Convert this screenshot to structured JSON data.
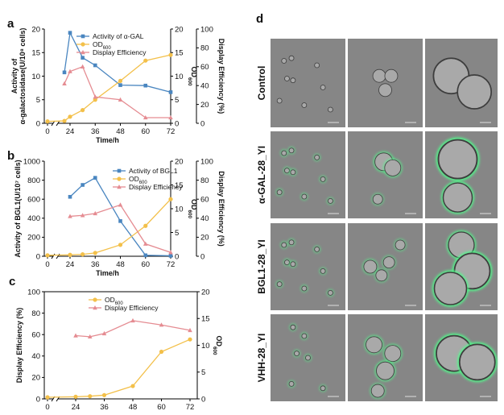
{
  "colors": {
    "alpha_gal": "#4a86c0",
    "bgl1": "#4a86c0",
    "od": "#f3c04a",
    "display": "#e58c92",
    "micro_bg": "#868686",
    "cell_fill": "#a9a9a9",
    "cell_edge": "#3d3d3d",
    "fluor": "#4dff8a"
  },
  "chart_data": [
    {
      "panel": "a",
      "type": "line",
      "x_ticks": [
        "0",
        "24",
        "36",
        "48",
        "60",
        "72"
      ],
      "xlabel": "Time/h",
      "ylabel_left": "Activity of α-galactosidase(U/10⁸ cells)",
      "ylabel_right_inner": "OD₆₀₀",
      "ylabel_right_outer": "Display Efficiency (%)",
      "ylim_left": [
        0,
        20
      ],
      "ylim_right_inner": [
        0,
        20
      ],
      "ylim_right_outer": [
        0,
        100
      ],
      "yticks_left": [
        "0",
        "5",
        "10",
        "15",
        "20"
      ],
      "yticks_right_inner": [
        "0",
        "5",
        "10",
        "15",
        "20"
      ],
      "yticks_right_outer": [
        "0",
        "20",
        "40",
        "60",
        "80",
        "100"
      ],
      "legend_position": "top-center",
      "series": [
        {
          "name": "Activity of α-GAL",
          "axis": "left",
          "color_key": "alpha_gal",
          "marker": "square",
          "x": [
            18,
            24,
            30,
            36,
            48,
            60,
            72
          ],
          "y": [
            10.8,
            19.2,
            13.9,
            12.3,
            8.1,
            8.0,
            6.6
          ]
        },
        {
          "name": "OD600",
          "legend_main": "OD",
          "legend_sub": "600",
          "axis": "right_inner",
          "color_key": "od",
          "marker": "circle",
          "x": [
            0,
            18,
            24,
            30,
            36,
            48,
            60,
            72
          ],
          "y": [
            0.4,
            0.5,
            1.4,
            2.8,
            5.0,
            9.0,
            13.3,
            14.5
          ]
        },
        {
          "name": "Display Efficiency",
          "axis": "right_outer",
          "color_key": "display",
          "marker": "triangle",
          "x": [
            18,
            24,
            30,
            36,
            48,
            60,
            72
          ],
          "y": [
            42,
            55,
            60,
            28,
            25,
            6,
            6
          ]
        }
      ]
    },
    {
      "panel": "b",
      "type": "line",
      "x_ticks": [
        "0",
        "24",
        "36",
        "48",
        "60",
        "72"
      ],
      "xlabel": "Time/h",
      "ylabel_left": "Activity of BGL1(U/10⁷ cells)",
      "ylabel_right_inner": "OD₆₀₀",
      "ylabel_right_outer": "Display Efficiency (%)",
      "ylim_left": [
        0,
        1000
      ],
      "ylim_right_inner": [
        0,
        20
      ],
      "ylim_right_outer": [
        0,
        100
      ],
      "yticks_left": [
        "0",
        "200",
        "400",
        "600",
        "800",
        "1000"
      ],
      "yticks_right_inner": [
        "0",
        "5",
        "10",
        "15",
        "20"
      ],
      "yticks_right_outer": [
        "0",
        "20",
        "40",
        "60",
        "80",
        "100"
      ],
      "legend_position": "top-right",
      "series": [
        {
          "name": "Activity of BGL1",
          "axis": "left",
          "color_key": "bgl1",
          "marker": "square",
          "x": [
            24,
            30,
            36,
            48,
            60,
            72
          ],
          "y": [
            625,
            750,
            825,
            370,
            10,
            5
          ]
        },
        {
          "name": "OD600",
          "legend_main": "OD",
          "legend_sub": "600",
          "axis": "right_inner",
          "color_key": "od",
          "marker": "circle",
          "x": [
            0,
            24,
            30,
            36,
            48,
            60,
            72
          ],
          "y": [
            0.2,
            0.3,
            0.4,
            0.7,
            2.4,
            6.4,
            12.0
          ]
        },
        {
          "name": "Display Efficiency",
          "axis": "right_outer",
          "color_key": "display",
          "marker": "triangle",
          "x": [
            24,
            30,
            36,
            48,
            60,
            72
          ],
          "y": [
            42,
            43,
            45,
            54,
            13,
            4
          ]
        }
      ]
    },
    {
      "panel": "c",
      "type": "line",
      "x_ticks": [
        "0",
        "24",
        "36",
        "48",
        "60",
        "72"
      ],
      "xlabel": "",
      "ylabel_left": "Display Efficiency (%)",
      "ylabel_right": "OD₆₀₀",
      "ylim_left": [
        0,
        100
      ],
      "ylim_right": [
        0,
        20
      ],
      "yticks_left": [
        "0",
        "20",
        "40",
        "60",
        "80",
        "100"
      ],
      "yticks_right": [
        "0",
        "5",
        "10",
        "15",
        "20"
      ],
      "legend_position": "top-center",
      "series": [
        {
          "name": "OD600",
          "legend_main": "OD",
          "legend_sub": "600",
          "axis": "right",
          "color_key": "od",
          "marker": "circle",
          "x": [
            0,
            24,
            30,
            36,
            48,
            60,
            72
          ],
          "y": [
            0.3,
            0.4,
            0.5,
            0.7,
            2.4,
            8.8,
            11.1
          ]
        },
        {
          "name": "Display Efficiency",
          "axis": "left",
          "color_key": "display",
          "marker": "triangle",
          "x": [
            24,
            30,
            36,
            48,
            60,
            72
          ],
          "y": [
            59,
            58,
            61,
            73,
            69,
            64
          ]
        }
      ]
    }
  ],
  "microscopy": {
    "panel": "d",
    "rows": [
      {
        "label": "Control",
        "green": false
      },
      {
        "label": "α-GAL-28_YI",
        "green": true
      },
      {
        "label": "BGL1-28_YI",
        "green": true
      },
      {
        "label": "VHH-28_YI",
        "green": true
      }
    ]
  }
}
